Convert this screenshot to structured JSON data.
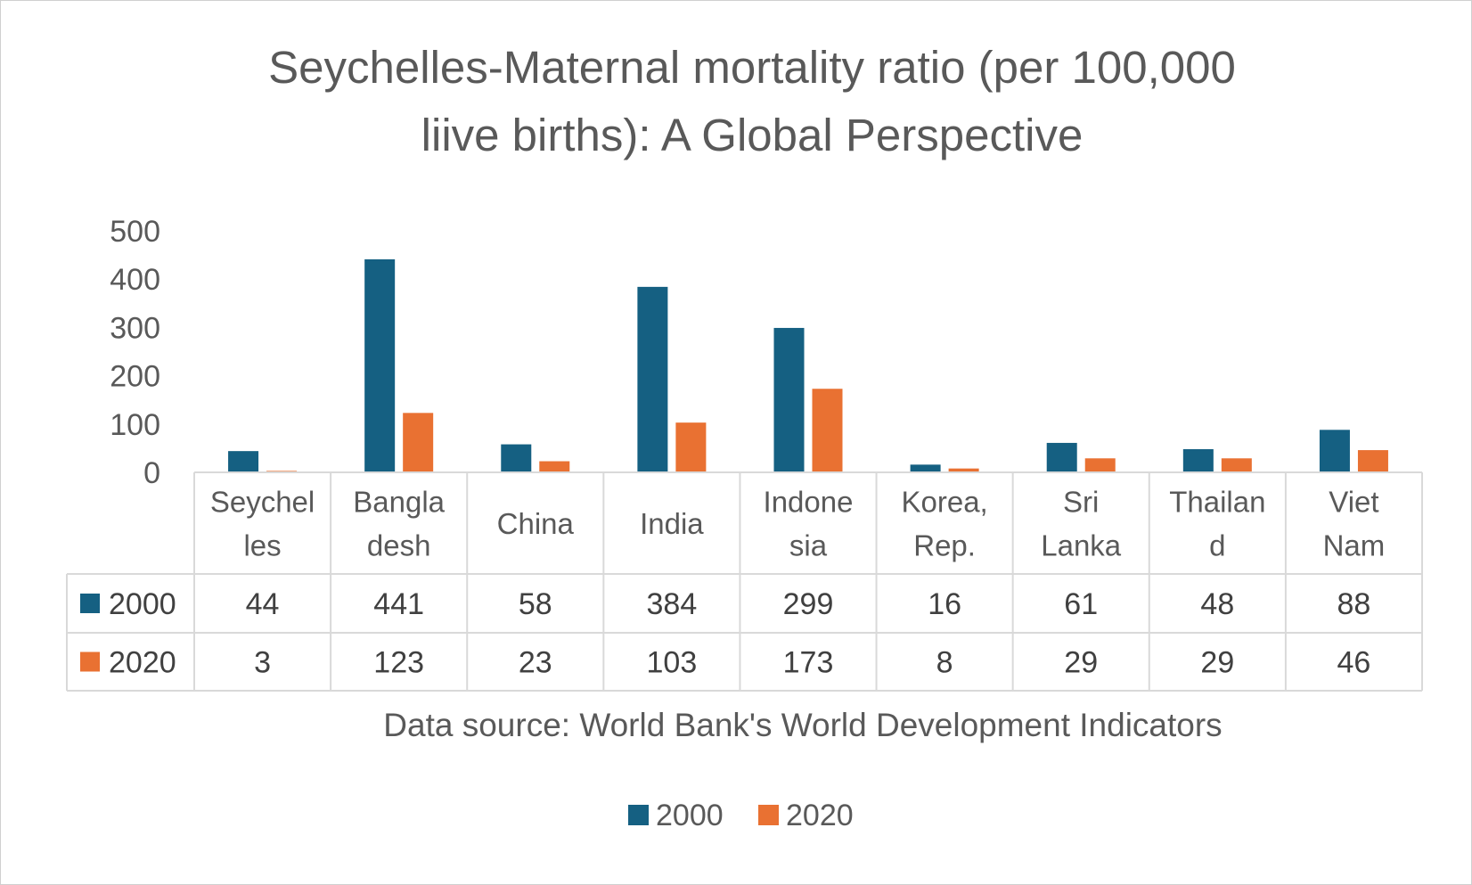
{
  "chart_data": {
    "type": "bar",
    "title_lines": [
      "Seychelles-Maternal mortality ratio (per 100,000",
      "liive births): A Global Perspective"
    ],
    "categories": [
      "Seychelles",
      "Bangladesh",
      "China",
      "India",
      "Indonesia",
      "Korea, Rep.",
      "Sri Lanka",
      "Thailand",
      "Viet Nam"
    ],
    "category_label_lines": [
      [
        "Seychel",
        "les"
      ],
      [
        "Bangla",
        "desh"
      ],
      [
        "China"
      ],
      [
        "India"
      ],
      [
        "Indone",
        "sia"
      ],
      [
        "Korea,",
        "Rep."
      ],
      [
        "Sri",
        "Lanka"
      ],
      [
        "Thailan",
        "d"
      ],
      [
        "Viet",
        "Nam"
      ]
    ],
    "series": [
      {
        "name": "2000",
        "color": "#156082",
        "values": [
          44,
          441,
          58,
          384,
          299,
          16,
          61,
          48,
          88
        ]
      },
      {
        "name": "2020",
        "color": "#E97132",
        "values": [
          3,
          123,
          23,
          103,
          173,
          8,
          29,
          29,
          46
        ]
      }
    ],
    "ylim": [
      0,
      500
    ],
    "yticks": [
      0,
      100,
      200,
      300,
      400,
      500
    ],
    "data_table": true,
    "legend_position": "bottom",
    "grid": false,
    "source_note": "Data source: World Bank's World Development Indicators"
  }
}
